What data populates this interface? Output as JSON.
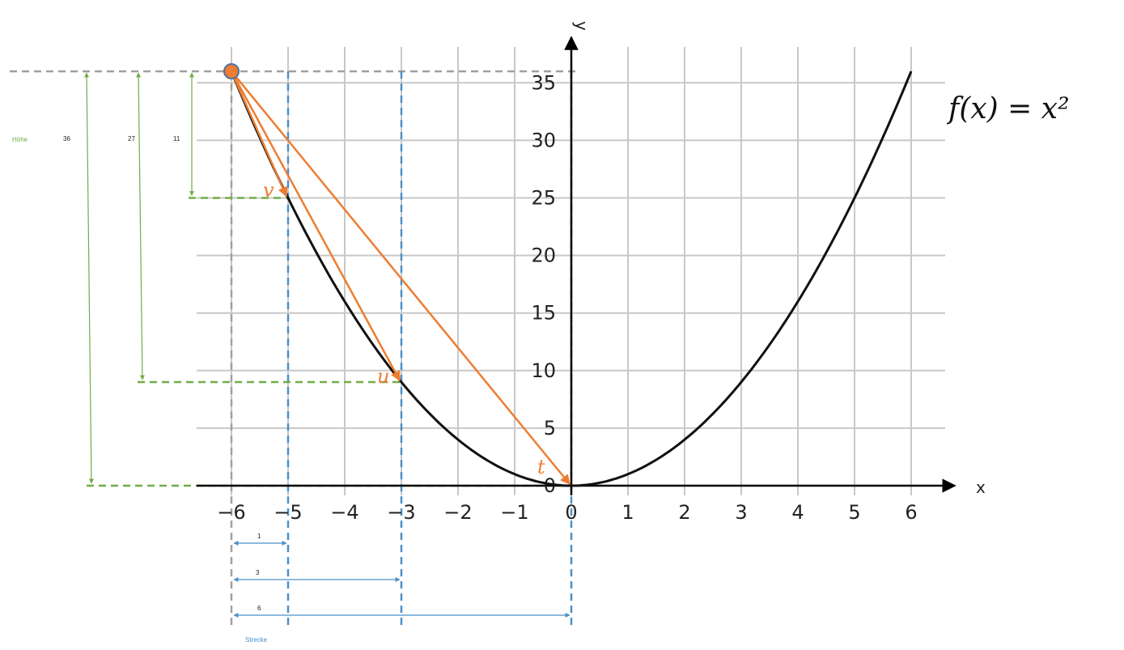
{
  "chart_data": {
    "type": "line",
    "function_label": "f(x) = x²",
    "series": [
      {
        "name": "f(x) = x²",
        "x": [
          -6,
          -5,
          -4,
          -3,
          -2,
          -1,
          0,
          1,
          2,
          3,
          4,
          5,
          6
        ],
        "y": [
          36,
          25,
          16,
          9,
          4,
          1,
          0,
          1,
          4,
          9,
          16,
          25,
          36
        ]
      }
    ],
    "xlabel": "x",
    "ylabel": "y",
    "xlim": [
      -6.6,
      6.6
    ],
    "ylim": [
      -0.5,
      38
    ],
    "x_ticks": [
      -6,
      -5,
      -4,
      -3,
      -2,
      -1,
      0,
      1,
      2,
      3,
      4,
      5,
      6
    ],
    "y_ticks": [
      0,
      5,
      10,
      15,
      20,
      25,
      30,
      35
    ],
    "grid": true,
    "start_point": {
      "x": -6,
      "y": 36
    },
    "vectors": [
      {
        "label": "v",
        "to": {
          "x": -5,
          "y": 25
        }
      },
      {
        "label": "u",
        "to": {
          "x": -3,
          "y": 9
        }
      },
      {
        "label": "t",
        "to": {
          "x": 0,
          "y": 0
        }
      }
    ],
    "height_annotation": {
      "label": "Höhe",
      "values": [
        "36",
        "27",
        "11"
      ]
    },
    "distance_annotation": {
      "label": "Strecke",
      "values": [
        "1",
        "3",
        "6"
      ]
    },
    "colors": {
      "curve": "#111111",
      "vectors": "#ed7d31",
      "height": "#70ad47",
      "distance": "#4a90c8",
      "grid": "#c8c8c8"
    }
  }
}
